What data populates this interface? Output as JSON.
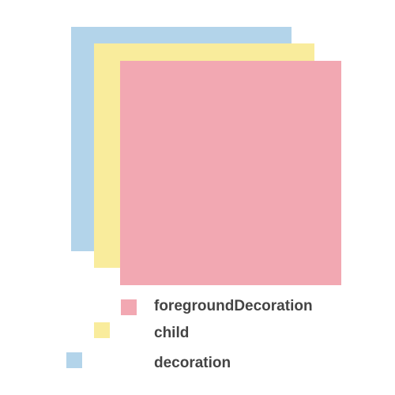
{
  "layers": {
    "decoration": {
      "label": "decoration",
      "color": "#b3d4ea"
    },
    "child": {
      "label": "child",
      "color": "#f9ec9c"
    },
    "foreground": {
      "label": "foregroundDecoration",
      "color": "#f2a8b2"
    }
  }
}
